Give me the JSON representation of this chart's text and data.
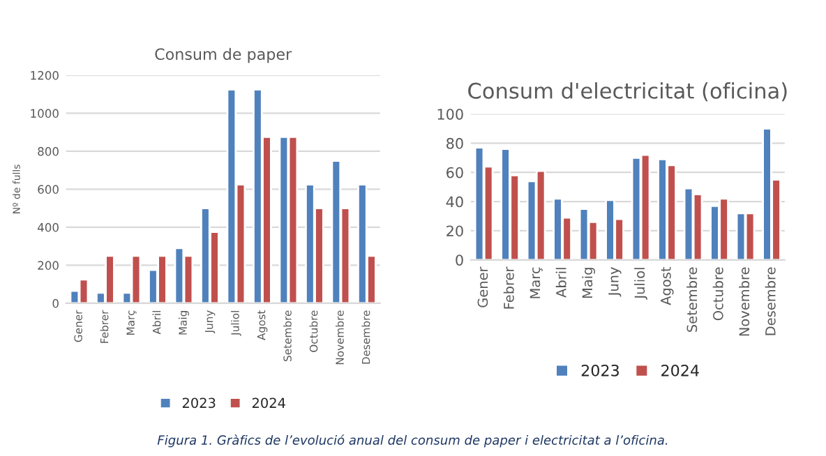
{
  "chart_data": [
    {
      "type": "bar",
      "title": "Consum de paper",
      "ylabel": "Nº de fulls",
      "categories": [
        "Gener",
        "Febrer",
        "Març",
        "Abril",
        "Maig",
        "Juny",
        "Juliol",
        "Agost",
        "Setembre",
        "Octubre",
        "Novembre",
        "Desembre"
      ],
      "series": [
        {
          "name": "2023",
          "color": "#4f81bd",
          "values": [
            65,
            55,
            55,
            175,
            290,
            500,
            1125,
            1125,
            875,
            625,
            750,
            625
          ]
        },
        {
          "name": "2024",
          "color": "#c0504d",
          "values": [
            125,
            250,
            250,
            250,
            250,
            375,
            625,
            875,
            875,
            500,
            500,
            250
          ]
        }
      ],
      "ylim": [
        0,
        1200
      ],
      "yticks": [
        0,
        200,
        400,
        600,
        800,
        1000,
        1200
      ],
      "grid": "y",
      "legend": "bottom"
    },
    {
      "type": "bar",
      "title": "Consum d'electricitat (oficina)",
      "categories": [
        "Gener",
        "Febrer",
        "Març",
        "Abril",
        "Maig",
        "Juny",
        "Juliol",
        "Agost",
        "Setembre",
        "Octubre",
        "Novembre",
        "Desembre"
      ],
      "series": [
        {
          "name": "2023",
          "color": "#4f81bd",
          "values": [
            77,
            76,
            54,
            42,
            35,
            41,
            70,
            69,
            49,
            37,
            32,
            90
          ]
        },
        {
          "name": "2024",
          "color": "#c0504d",
          "values": [
            64,
            58,
            61,
            29,
            26,
            28,
            72,
            65,
            45,
            42,
            32,
            55
          ]
        }
      ],
      "ylim": [
        0,
        100
      ],
      "yticks": [
        0,
        20,
        40,
        60,
        80,
        100
      ],
      "grid": "y",
      "legend": "bottom",
      "annotations": [
        "Figura 1. Gràfics de l’evolució anual del consum de paper i electricitat a l’oficina."
      ]
    }
  ]
}
